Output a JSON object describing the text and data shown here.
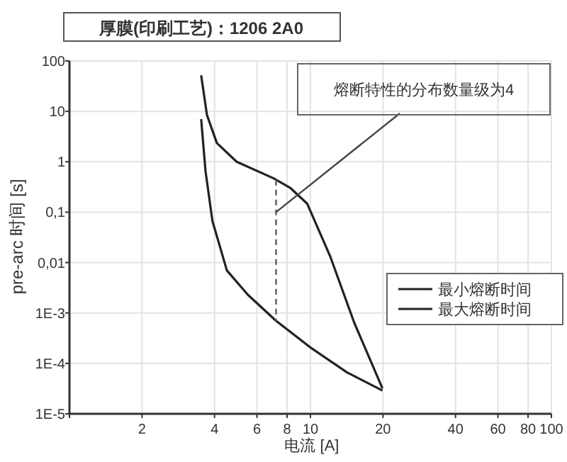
{
  "chart_data": {
    "type": "line",
    "title": "厚膜(印刷工艺)：1206 2A0",
    "xlabel": "电流 [A]",
    "ylabel": "pre-arc 时间 [s]",
    "log": "xy",
    "xlim": [
      1,
      100
    ],
    "ylim": [
      1e-05,
      100
    ],
    "xticks": [
      {
        "value": 1,
        "label": null
      },
      2,
      4,
      6,
      8,
      10,
      20,
      40,
      60,
      80,
      100
    ],
    "yticks": [
      100,
      10,
      1,
      {
        "value": 0.1,
        "label": "0,1"
      },
      {
        "value": 0.01,
        "label": "0,01"
      },
      {
        "value": 0.001,
        "label": "1E-3"
      },
      {
        "value": 0.0001,
        "label": "1E-4"
      },
      {
        "value": 1e-05,
        "label": "1E-5"
      }
    ],
    "grid": true,
    "legend": "right",
    "line_style": "solid",
    "series": [
      {
        "name": "最小熔断时间",
        "color": "#222222",
        "x": [
          3.52,
          3.67,
          3.92,
          4.5,
          5.5,
          7.2,
          10.1,
          14.2,
          19.9
        ],
        "values": [
          7,
          0.65,
          0.067,
          0.007,
          0.0023,
          0.0007,
          0.0002,
          6.6e-05,
          2.9e-05
        ]
      },
      {
        "name": "最大熔断时间",
        "color": "#222222",
        "x": [
          3.52,
          3.72,
          4.09,
          4.94,
          7.03,
          8.27,
          9.7,
          12.1,
          15.2,
          19.9
        ],
        "values": [
          52,
          8.5,
          2.35,
          1.0,
          0.47,
          0.3,
          0.147,
          0.013,
          0.00064,
          3.2e-05
        ]
      }
    ],
    "ref_lines": [
      {
        "axis": "x",
        "value": 7.2,
        "color": "#666666",
        "line_style": "dashed"
      }
    ],
    "annotations": [
      {
        "text": "熔断特性的分布数量级为4",
        "x": 7.2,
        "y": 0.1
      }
    ]
  }
}
